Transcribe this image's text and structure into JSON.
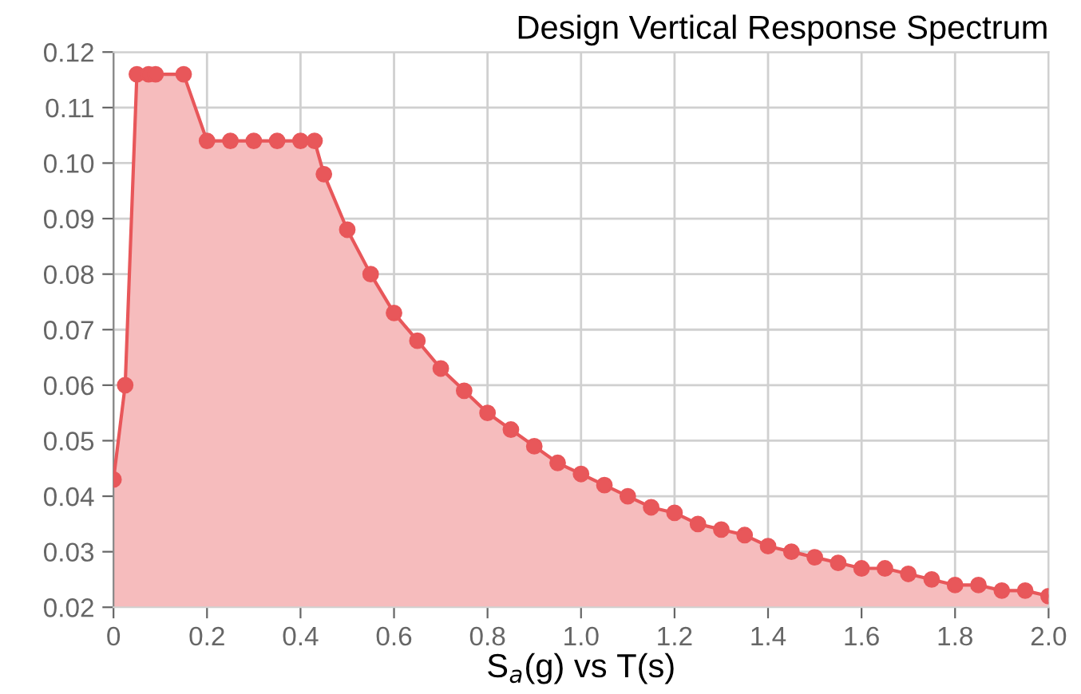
{
  "chart_data": {
    "type": "area",
    "title": "Design Vertical Response Spectrum",
    "xlabel": "S$_{a}$(g) vs T(s)",
    "x": [
      0,
      0.025,
      0.05,
      0.075,
      0.09,
      0.15,
      0.2,
      0.25,
      0.3,
      0.35,
      0.4,
      0.43,
      0.45,
      0.5,
      0.55,
      0.6,
      0.65,
      0.7,
      0.75,
      0.8,
      0.85,
      0.9,
      0.95,
      1.0,
      1.05,
      1.1,
      1.15,
      1.2,
      1.25,
      1.3,
      1.35,
      1.4,
      1.45,
      1.5,
      1.55,
      1.6,
      1.65,
      1.7,
      1.75,
      1.8,
      1.85,
      1.9,
      1.95,
      2.0
    ],
    "series": [
      {
        "color": "#e8575a",
        "values": [
          0.043,
          0.06,
          0.116,
          0.116,
          0.116,
          0.116,
          0.104,
          0.104,
          0.104,
          0.104,
          0.104,
          0.104,
          0.098,
          0.088,
          0.08,
          0.073,
          0.068,
          0.063,
          0.059,
          0.055,
          0.052,
          0.049,
          0.046,
          0.044,
          0.042,
          0.04,
          0.038,
          0.037,
          0.035,
          0.034,
          0.033,
          0.031,
          0.03,
          0.029,
          0.028,
          0.027,
          0.027,
          0.026,
          0.025,
          0.024,
          0.024,
          0.023,
          0.023,
          0.022
        ]
      }
    ],
    "xlim": [
      0,
      2.0
    ],
    "ylim": [
      0.02,
      0.12
    ],
    "xticks": [
      0,
      {
        "value": 0.2,
        "label": "0.2"
      },
      {
        "value": 0.4,
        "label": "0.4"
      },
      {
        "value": 0.6,
        "label": "0.6"
      },
      {
        "value": 0.8,
        "label": "0.8"
      },
      {
        "value": 1.0,
        "label": "1.0"
      },
      {
        "value": 1.2,
        "label": "1.2"
      },
      {
        "value": 1.4,
        "label": "1.4"
      },
      {
        "value": 1.6,
        "label": "1.6"
      },
      {
        "value": 1.8,
        "label": "1.8"
      },
      {
        "value": 2.0,
        "label": "2.0"
      }
    ],
    "yticks": [
      {
        "value": 0.02,
        "label": "0.02"
      },
      {
        "value": 0.03,
        "label": "0.03"
      },
      {
        "value": 0.04,
        "label": "0.04"
      },
      {
        "value": 0.05,
        "label": "0.05"
      },
      {
        "value": 0.06,
        "label": "0.06"
      },
      {
        "value": 0.07,
        "label": "0.07"
      },
      {
        "value": 0.08,
        "label": "0.08"
      },
      {
        "value": 0.09,
        "label": "0.09"
      },
      {
        "value": 0.1,
        "label": "0.10"
      },
      {
        "value": 0.11,
        "label": "0.11"
      },
      {
        "value": 0.12,
        "label": "0.12"
      }
    ],
    "grid": true,
    "marker": "circle",
    "line_style": "solid"
  }
}
